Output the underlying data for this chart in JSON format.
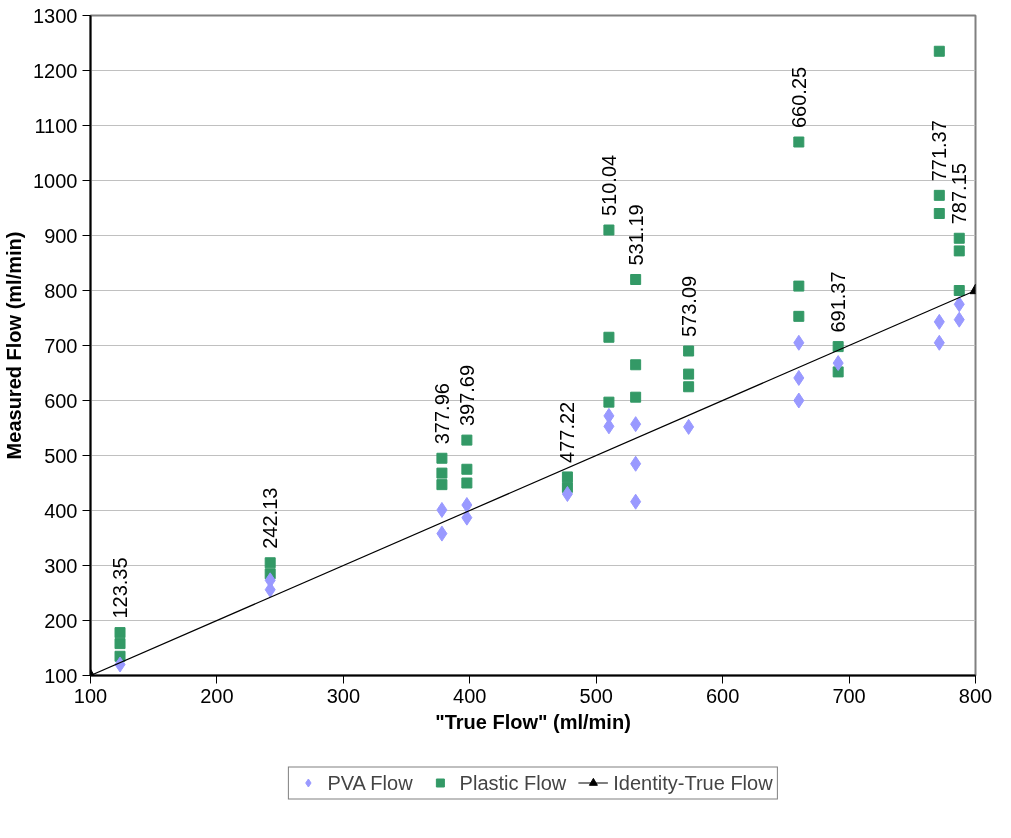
{
  "chart_data": {
    "type": "scatter",
    "xlabel": "\"True Flow\" (ml/min)",
    "ylabel": "Measured Flow (ml/min)",
    "xlim": [
      100,
      800
    ],
    "ylim": [
      100,
      1300
    ],
    "xticks": [
      100,
      200,
      300,
      400,
      500,
      600,
      700,
      800
    ],
    "yticks": [
      100,
      200,
      300,
      400,
      500,
      600,
      700,
      800,
      900,
      1000,
      1100,
      1200,
      1300
    ],
    "grid": "y",
    "legend": "bottom",
    "series": [
      {
        "name": "PVA Flow",
        "marker": "diamond",
        "color": "#9999ff",
        "x": [
          123.35,
          242.13,
          242.13,
          377.96,
          377.96,
          397.69,
          397.69,
          477.22,
          510.04,
          510.04,
          531.19,
          531.19,
          531.19,
          573.09,
          660.25,
          660.25,
          660.25,
          691.37,
          771.37,
          771.37,
          787.15,
          787.15
        ],
        "values": [
          120,
          273,
          256,
          401,
          358,
          410,
          387,
          430,
          572,
          553,
          557,
          485,
          416,
          552,
          705,
          641,
          600,
          668,
          743,
          705,
          775,
          747
        ]
      },
      {
        "name": "Plastic Flow",
        "marker": "square",
        "color": "#339966",
        "x": [
          123.35,
          123.35,
          123.35,
          242.13,
          242.13,
          377.96,
          377.96,
          377.96,
          397.69,
          397.69,
          397.69,
          477.22,
          477.22,
          510.04,
          510.04,
          510.04,
          531.19,
          531.19,
          531.19,
          573.09,
          573.09,
          573.09,
          660.25,
          660.25,
          660.25,
          691.37,
          691.37,
          771.37,
          771.37,
          771.37,
          787.15,
          787.15,
          787.15
        ],
        "values": [
          178,
          158,
          135,
          305,
          285,
          495,
          468,
          447,
          528,
          475,
          450,
          461,
          442,
          910,
          715,
          597,
          820,
          665,
          606,
          690,
          648,
          625,
          1070,
          808,
          753,
          698,
          652,
          1235,
          973,
          940,
          895,
          872,
          800
        ]
      },
      {
        "name": "Identity-True Flow",
        "type": "line",
        "marker": "triangle",
        "line_style": "solid",
        "color": "#000000",
        "x": [
          100,
          800
        ],
        "values": [
          100,
          800
        ]
      }
    ],
    "annotations": [
      {
        "text": "123.35",
        "x": 123.35,
        "y": 178
      },
      {
        "text": "242.13",
        "x": 242.13,
        "y": 305
      },
      {
        "text": "377.96",
        "x": 377.96,
        "y": 495
      },
      {
        "text": "397.69",
        "x": 397.69,
        "y": 528
      },
      {
        "text": "477.22",
        "x": 477.22,
        "y": 461
      },
      {
        "text": "510.04",
        "x": 510.04,
        "y": 910
      },
      {
        "text": "531.19",
        "x": 531.19,
        "y": 820
      },
      {
        "text": "573.09",
        "x": 573.09,
        "y": 690
      },
      {
        "text": "660.25",
        "x": 660.25,
        "y": 1070
      },
      {
        "text": "691.37",
        "x": 691.37,
        "y": 698
      },
      {
        "text": "771.37",
        "x": 771.37,
        "y": 973
      },
      {
        "text": "787.15",
        "x": 787.15,
        "y": 895
      }
    ]
  }
}
